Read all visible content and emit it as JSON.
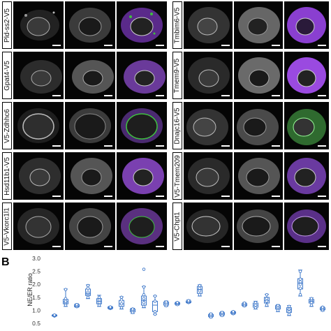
{
  "figure": {
    "panel_b_label": "B",
    "left_column_labels": [
      "Pld-ss2-V5",
      "Gpat4-V5",
      "V5-Zdhhc6",
      "Hsd11b1-V5",
      "V5-Vkorc1l1"
    ],
    "right_column_labels": [
      "Tmbim6-V5",
      "Tmem9-V5",
      "Dnajc16-V5",
      "V5-Tmem209",
      "V5-Chpt1"
    ],
    "merge_colors": {
      "er": "#8a3fd0",
      "marker": "#3fbf3f",
      "nuclear": "#d8d8d8"
    }
  },
  "chart_data": {
    "type": "box",
    "title": "",
    "xlabel": "",
    "ylabel": "NE/ER ratio",
    "ylim": [
      0.5,
      3.0
    ],
    "yticks": [
      "3.0",
      "2.5",
      "2.0",
      "1.5",
      "1.0",
      "0.5"
    ],
    "grid": false,
    "color": "#3d77c9",
    "boxes": [
      {
        "min": 0.77,
        "q1": 0.78,
        "median": 0.8,
        "q3": 0.82,
        "max": 0.84,
        "points": [
          0.78,
          0.8,
          0.82
        ]
      },
      {
        "min": 1.15,
        "q1": 1.25,
        "median": 1.33,
        "q3": 1.42,
        "max": 1.82,
        "points": [
          1.2,
          1.3,
          1.35,
          1.45,
          1.8
        ]
      },
      {
        "min": 1.12,
        "q1": 1.14,
        "median": 1.17,
        "q3": 1.22,
        "max": 1.25,
        "points": [
          1.14,
          1.18,
          1.22
        ]
      },
      {
        "min": 1.45,
        "q1": 1.57,
        "median": 1.65,
        "q3": 1.82,
        "max": 1.98,
        "points": [
          1.5,
          1.6,
          1.65,
          1.7,
          1.85,
          1.95
        ]
      },
      {
        "min": 1.15,
        "q1": 1.25,
        "median": 1.35,
        "q3": 1.45,
        "max": 1.58,
        "points": [
          1.2,
          1.3,
          1.4,
          1.5
        ]
      },
      {
        "min": 1.05,
        "q1": 1.07,
        "median": 1.1,
        "q3": 1.13,
        "max": 1.15,
        "points": [
          1.07,
          1.1,
          1.13
        ]
      },
      {
        "min": 1.05,
        "q1": 1.15,
        "median": 1.25,
        "q3": 1.38,
        "max": 1.52,
        "points": [
          1.1,
          1.25,
          1.4,
          1.5
        ]
      },
      {
        "min": 0.88,
        "q1": 0.94,
        "median": 1.0,
        "q3": 1.05,
        "max": 1.08,
        "points": [
          0.92,
          1.0,
          1.05
        ]
      },
      {
        "min": 1.1,
        "q1": 1.2,
        "median": 1.38,
        "q3": 1.55,
        "max": 1.92,
        "points": [
          1.15,
          1.3,
          1.45,
          1.6,
          1.9,
          2.58
        ]
      },
      {
        "min": 0.85,
        "q1": 0.95,
        "median": 1.2,
        "q3": 1.35,
        "max": 1.55,
        "points": [
          0.85,
          0.95,
          1.35,
          1.55
        ]
      },
      {
        "min": 1.15,
        "q1": 1.2,
        "median": 1.27,
        "q3": 1.32,
        "max": 1.36,
        "points": [
          1.18,
          1.25,
          1.32
        ]
      },
      {
        "min": 1.2,
        "q1": 1.23,
        "median": 1.26,
        "q3": 1.29,
        "max": 1.32,
        "points": [
          1.22,
          1.27,
          1.3
        ]
      },
      {
        "min": 1.28,
        "q1": 1.3,
        "median": 1.32,
        "q3": 1.36,
        "max": 1.4,
        "points": [
          1.3,
          1.33,
          1.37
        ]
      },
      {
        "min": 1.55,
        "q1": 1.65,
        "median": 1.8,
        "q3": 1.92,
        "max": 1.98,
        "points": [
          1.6,
          1.75,
          1.85,
          1.95
        ]
      },
      {
        "min": 0.72,
        "q1": 0.76,
        "median": 0.8,
        "q3": 0.84,
        "max": 0.88,
        "points": [
          0.74,
          0.8,
          0.86
        ]
      },
      {
        "min": 0.78,
        "q1": 0.82,
        "median": 0.87,
        "q3": 0.91,
        "max": 0.95,
        "points": [
          0.8,
          0.87,
          0.92
        ]
      },
      {
        "min": 0.85,
        "q1": 0.88,
        "median": 0.91,
        "q3": 0.94,
        "max": 0.97,
        "points": [
          0.87,
          0.91,
          0.95
        ]
      },
      {
        "min": 1.15,
        "q1": 1.18,
        "median": 1.22,
        "q3": 1.26,
        "max": 1.3,
        "points": [
          1.17,
          1.22,
          1.28
        ]
      },
      {
        "min": 1.05,
        "q1": 1.12,
        "median": 1.2,
        "q3": 1.28,
        "max": 1.35,
        "points": [
          1.1,
          1.2,
          1.3
        ]
      },
      {
        "min": 1.15,
        "q1": 1.28,
        "median": 1.38,
        "q3": 1.5,
        "max": 1.62,
        "points": [
          1.2,
          1.35,
          1.45,
          1.6
        ]
      },
      {
        "min": 0.95,
        "q1": 1.05,
        "median": 1.12,
        "q3": 1.18,
        "max": 1.22,
        "points": [
          1.0,
          1.1,
          1.18
        ]
      },
      {
        "min": 0.8,
        "q1": 0.92,
        "median": 1.02,
        "q3": 1.1,
        "max": 1.18,
        "points": [
          0.85,
          0.95,
          1.05,
          1.15
        ]
      },
      {
        "min": 1.55,
        "q1": 1.82,
        "median": 2.05,
        "q3": 2.22,
        "max": 2.55,
        "points": [
          1.6,
          1.85,
          2.0,
          2.1,
          2.2,
          2.5
        ]
      },
      {
        "min": 1.15,
        "q1": 1.28,
        "median": 1.35,
        "q3": 1.42,
        "max": 1.48,
        "points": [
          1.2,
          1.3,
          1.4,
          1.45
        ]
      },
      {
        "min": 0.98,
        "q1": 1.02,
        "median": 1.06,
        "q3": 1.1,
        "max": 1.14,
        "points": [
          1.0,
          1.06,
          1.12
        ]
      }
    ]
  }
}
